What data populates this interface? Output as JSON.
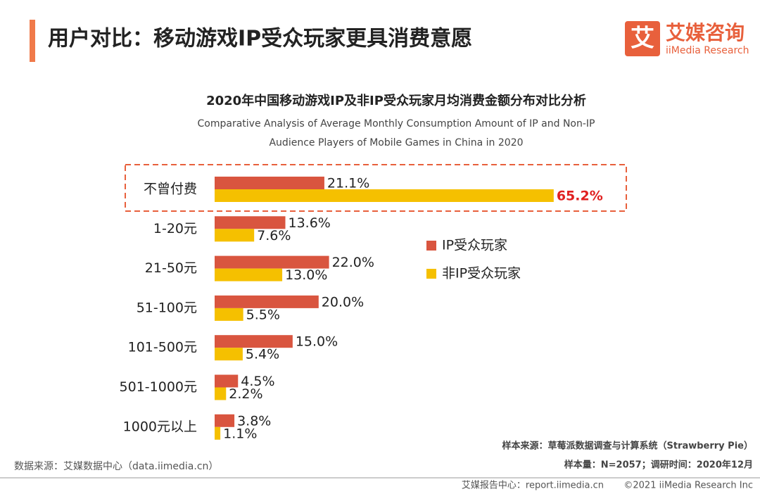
{
  "header": {
    "title": "用户对比：移动游戏IP受众玩家更具消费意愿",
    "logo_cn": "艾媒咨询",
    "logo_en": "iiMedia Research",
    "logo_mark": "艾"
  },
  "chart_data": {
    "type": "barh",
    "title": "2020年中国移动游戏IP及非IP受众玩家月均消费金额分布对比分析",
    "subtitle": [
      "Comparative Analysis of Average Monthly Consumption Amount of IP and Non-IP",
      "Audience Players of Mobile Games  in China in 2020"
    ],
    "categories": [
      "不曾付费",
      "1-20元",
      "21-50元",
      "51-100元",
      "101-500元",
      "501-1000元",
      "1000元以上"
    ],
    "series": [
      {
        "name": "IP受众玩家",
        "color": "#d9553f",
        "values": [
          21.1,
          13.6,
          22.0,
          20.0,
          15.0,
          4.5,
          3.8
        ],
        "value_labels": [
          "21.1%",
          "13.6%",
          "22.0%",
          "20.0%",
          "15.0%",
          "4.5%",
          "3.8%"
        ]
      },
      {
        "name": "非IP受众玩家",
        "color": "#f5c000",
        "values": [
          65.2,
          7.6,
          13.0,
          5.5,
          5.4,
          2.2,
          1.1
        ],
        "value_labels": [
          "65.2%",
          "7.6%",
          "13.0%",
          "5.5%",
          "5.4%",
          "2.2%",
          "1.1%"
        ]
      }
    ]
  },
  "sources": {
    "data_source": "数据来源：艾媒数据中心（data.iimedia.cn）",
    "sample_source": "样本来源：草莓派数据调查与计算系统（Strawberry Pie）",
    "sample_size": "样本量：N=2057；调研时间：2020年12月"
  },
  "footer": {
    "report_center": "艾媒报告中心：report.iimedia.cn",
    "copyright": "©2021  iiMedia Research  Inc"
  }
}
